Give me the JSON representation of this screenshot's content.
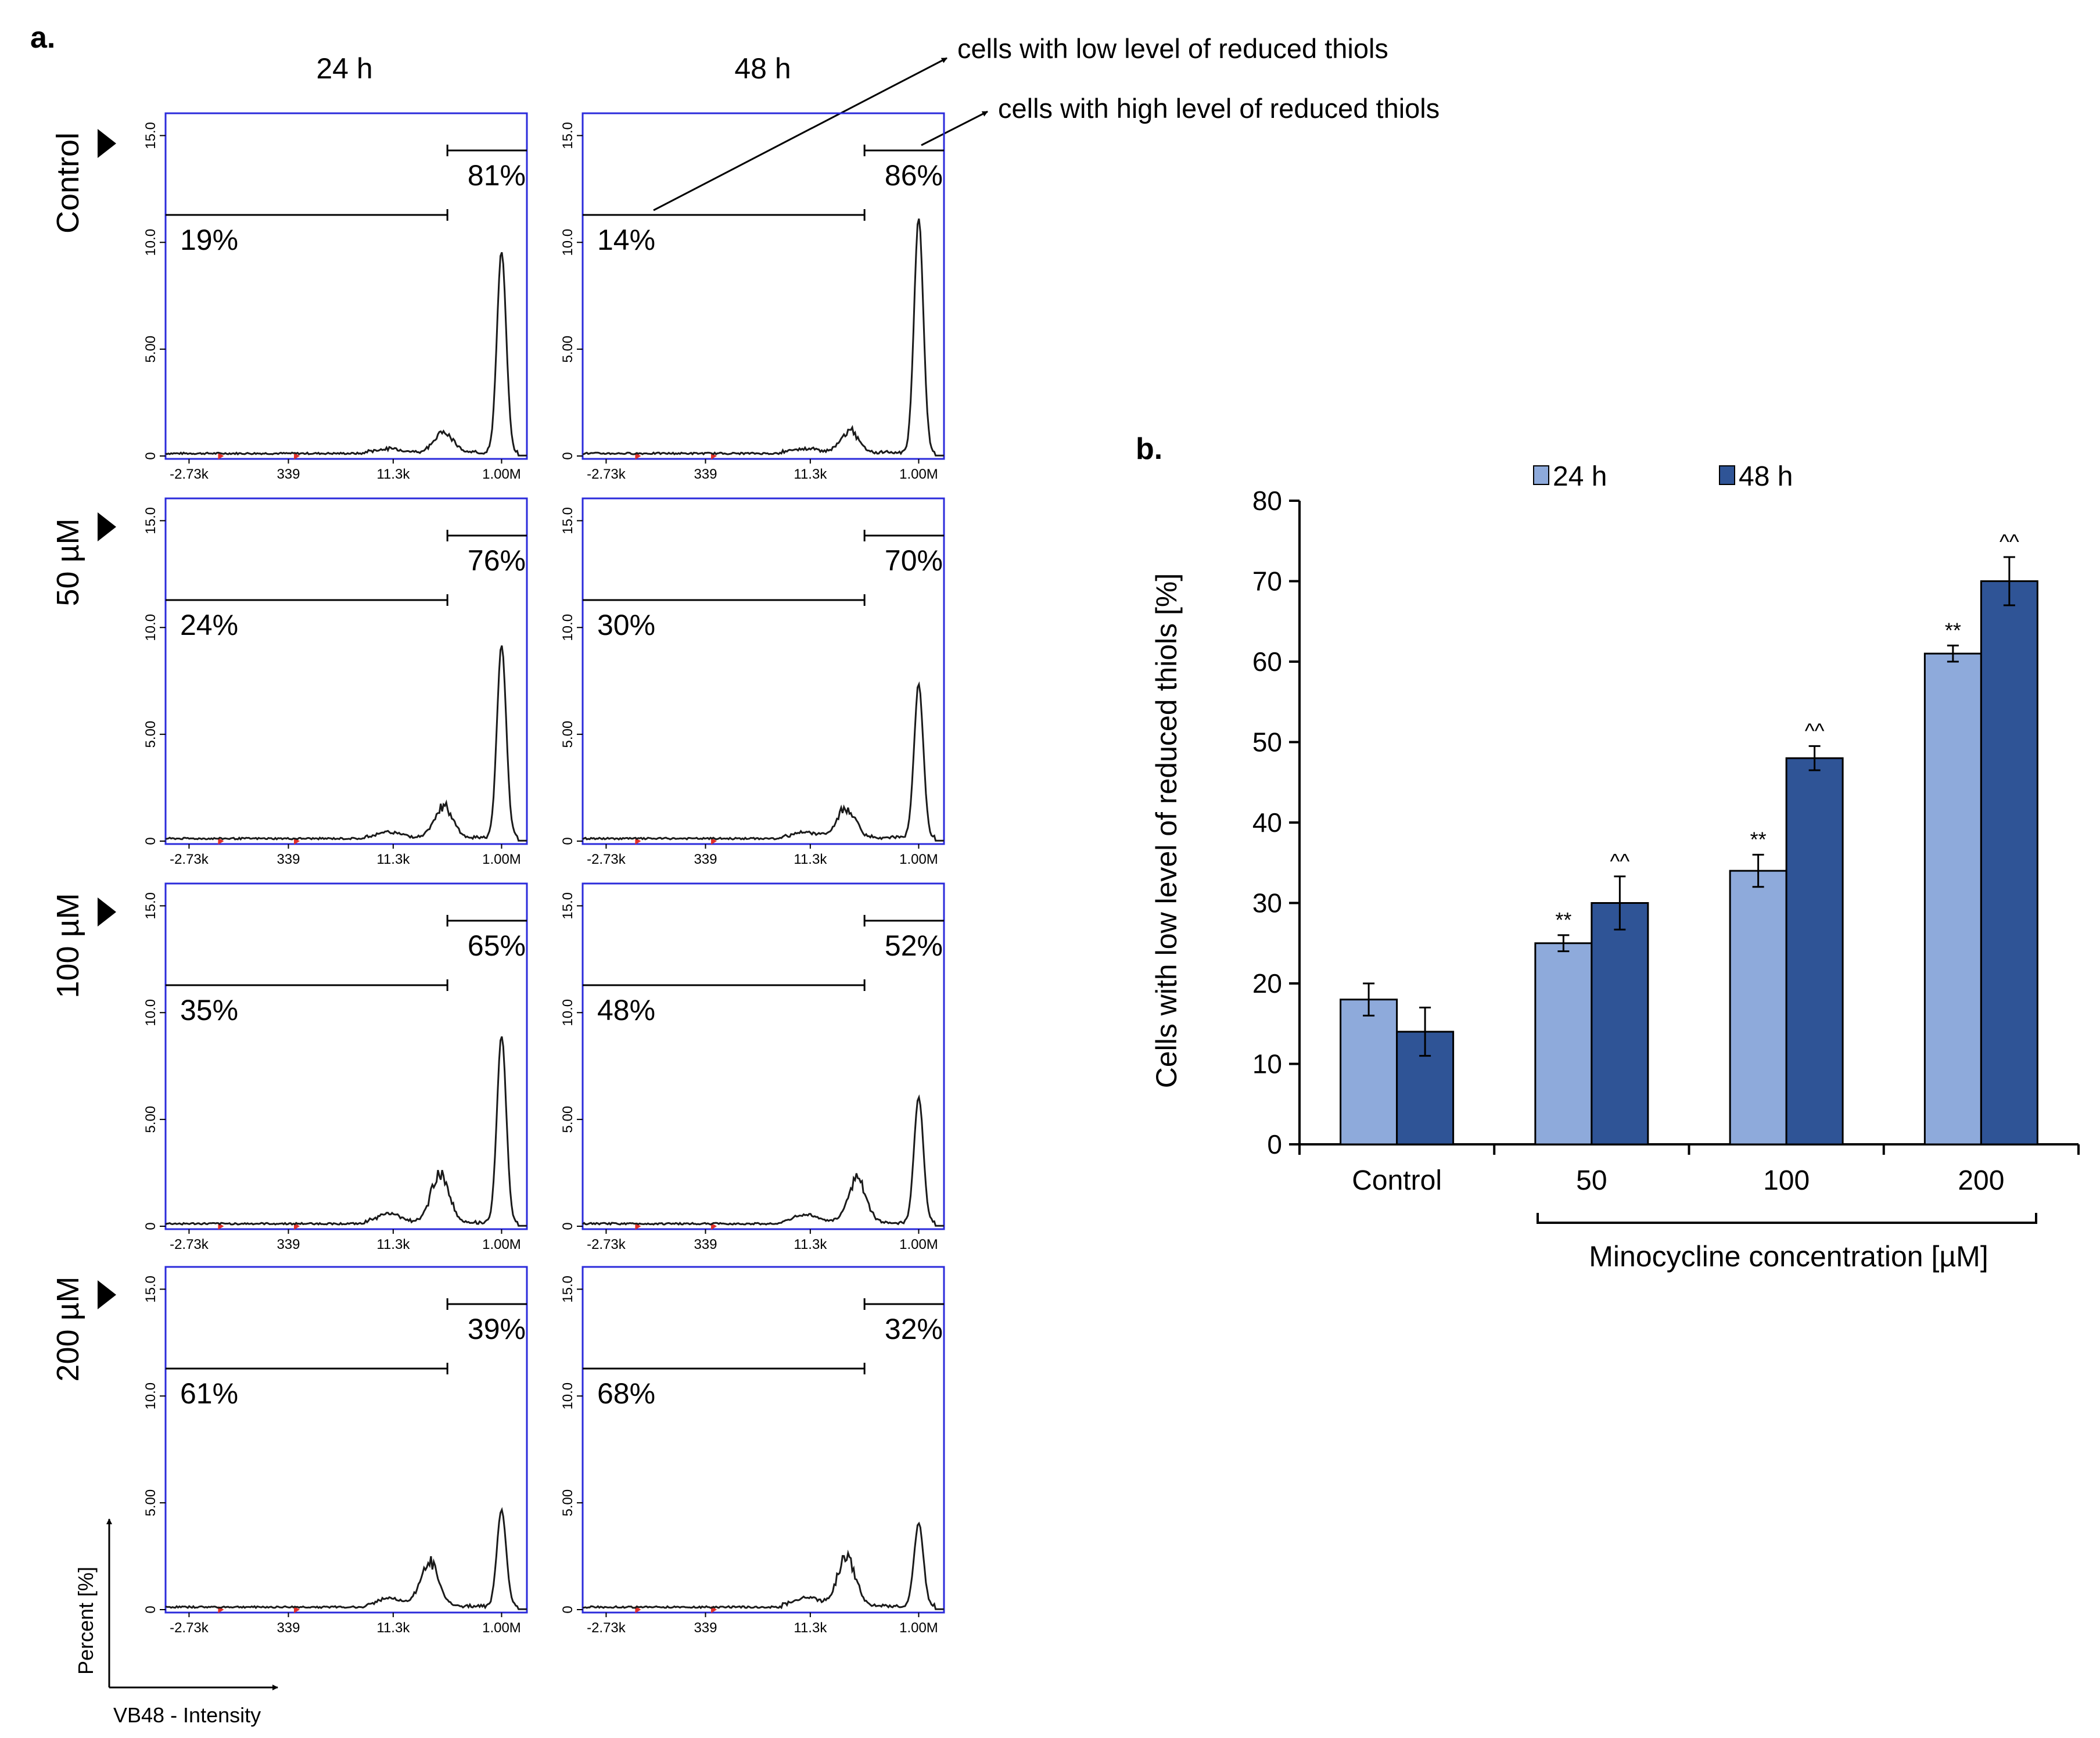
{
  "panel_a": {
    "label": "a.",
    "col_headers": [
      "24 h",
      "48 h"
    ],
    "row_labels": [
      "Control",
      "50 µM",
      "100 µM",
      "200 µM"
    ],
    "annotation_low": "cells with low level of reduced thiols",
    "annotation_high": "cells with high level of reduced thiols",
    "y_ticks": [
      "0",
      "5.00",
      "10.0",
      "15.0"
    ],
    "x_ticks": [
      "-2.73k",
      "339",
      "11.3k",
      "1.00M"
    ],
    "y_axis_label": "Percent [%]",
    "x_axis_label": "VB48 - Intensity",
    "colors": {
      "frame": "#2b2bdb",
      "trace": "#1a1a1a",
      "gate_marker": "#e0302a"
    },
    "histograms": [
      {
        "time": "24 h",
        "group": "Control",
        "low_pct": "19%",
        "high_pct": "81%",
        "peak": 9.4,
        "shoulder": 1.0,
        "shoulder_pos": 0.77
      },
      {
        "time": "48 h",
        "group": "Control",
        "low_pct": "14%",
        "high_pct": "86%",
        "peak": 11.0,
        "shoulder": 1.0,
        "shoulder_pos": 0.74
      },
      {
        "time": "24 h",
        "group": "50 µM",
        "low_pct": "24%",
        "high_pct": "76%",
        "peak": 9.0,
        "shoulder": 1.5,
        "shoulder_pos": 0.77
      },
      {
        "time": "48 h",
        "group": "50 µM",
        "low_pct": "30%",
        "high_pct": "70%",
        "peak": 7.2,
        "shoulder": 1.4,
        "shoulder_pos": 0.73
      },
      {
        "time": "24 h",
        "group": "100 µM",
        "low_pct": "35%",
        "high_pct": "65%",
        "peak": 8.8,
        "shoulder": 2.3,
        "shoulder_pos": 0.76
      },
      {
        "time": "48 h",
        "group": "100 µM",
        "low_pct": "48%",
        "high_pct": "52%",
        "peak": 5.9,
        "shoulder": 2.1,
        "shoulder_pos": 0.76
      },
      {
        "time": "24 h",
        "group": "200 µM",
        "low_pct": "61%",
        "high_pct": "39%",
        "peak": 4.5,
        "shoulder": 2.1,
        "shoulder_pos": 0.73
      },
      {
        "time": "48 h",
        "group": "200 µM",
        "low_pct": "68%",
        "high_pct": "32%",
        "peak": 3.9,
        "shoulder": 2.3,
        "shoulder_pos": 0.73
      }
    ]
  },
  "chart_data": {
    "type": "bar",
    "label": "b.",
    "categories": [
      "Control",
      "50",
      "100",
      "200"
    ],
    "series": [
      {
        "name": "24 h",
        "color": "#8eaadb",
        "values": [
          18,
          25,
          34,
          61
        ],
        "errors": [
          2,
          1,
          2,
          1
        ],
        "marks": [
          "",
          "**",
          "**",
          "**"
        ]
      },
      {
        "name": "48 h",
        "color": "#2f5496",
        "values": [
          14,
          30,
          48,
          70
        ],
        "errors": [
          3,
          3.3,
          1.5,
          3
        ],
        "marks": [
          "",
          "^^",
          "^^",
          "^^"
        ]
      }
    ],
    "ylabel": "Cells with low level of reduced thiols [%]",
    "xlabel": "Minocycline concentration [µM]",
    "ylim": [
      0,
      80
    ],
    "yticks": [
      0,
      10,
      20,
      30,
      40,
      50,
      60,
      70,
      80
    ],
    "legend_position": "top"
  }
}
